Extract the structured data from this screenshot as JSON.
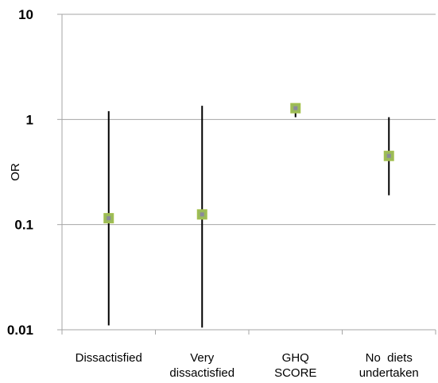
{
  "chart_data": {
    "type": "scatter",
    "title": "",
    "xlabel": "",
    "ylabel": "OR",
    "yscale": "log",
    "ylim": [
      0.01,
      10
    ],
    "yticks": [
      {
        "value": 0.01,
        "label": "0.01"
      },
      {
        "value": 0.1,
        "label": "0.1"
      },
      {
        "value": 1,
        "label": "1"
      },
      {
        "value": 10,
        "label": "10"
      }
    ],
    "grid": true,
    "legend": "none",
    "categories": [
      [
        "Dissactisfied"
      ],
      [
        "Very",
        "dissactisfied"
      ],
      [
        "GHQ",
        "SCORE"
      ],
      [
        "No  diets",
        "undertaken"
      ]
    ],
    "series": [
      {
        "points": [
          {
            "value": 0.115,
            "lower": 0.011,
            "upper": 1.2
          },
          {
            "value": 0.125,
            "lower": 0.0105,
            "upper": 1.35
          },
          {
            "value": 1.28,
            "lower": 1.05,
            "upper": 1.42
          },
          {
            "value": 0.45,
            "lower": 0.19,
            "upper": 1.05
          }
        ]
      }
    ],
    "colors": {
      "marker_fill": "#9bbb59",
      "marker_border": "#a6c24a",
      "marker_center": "#8a8a9c",
      "whisker": "#000000",
      "gridline": "#a6a6a6",
      "axis": "#a6a6a6"
    }
  }
}
